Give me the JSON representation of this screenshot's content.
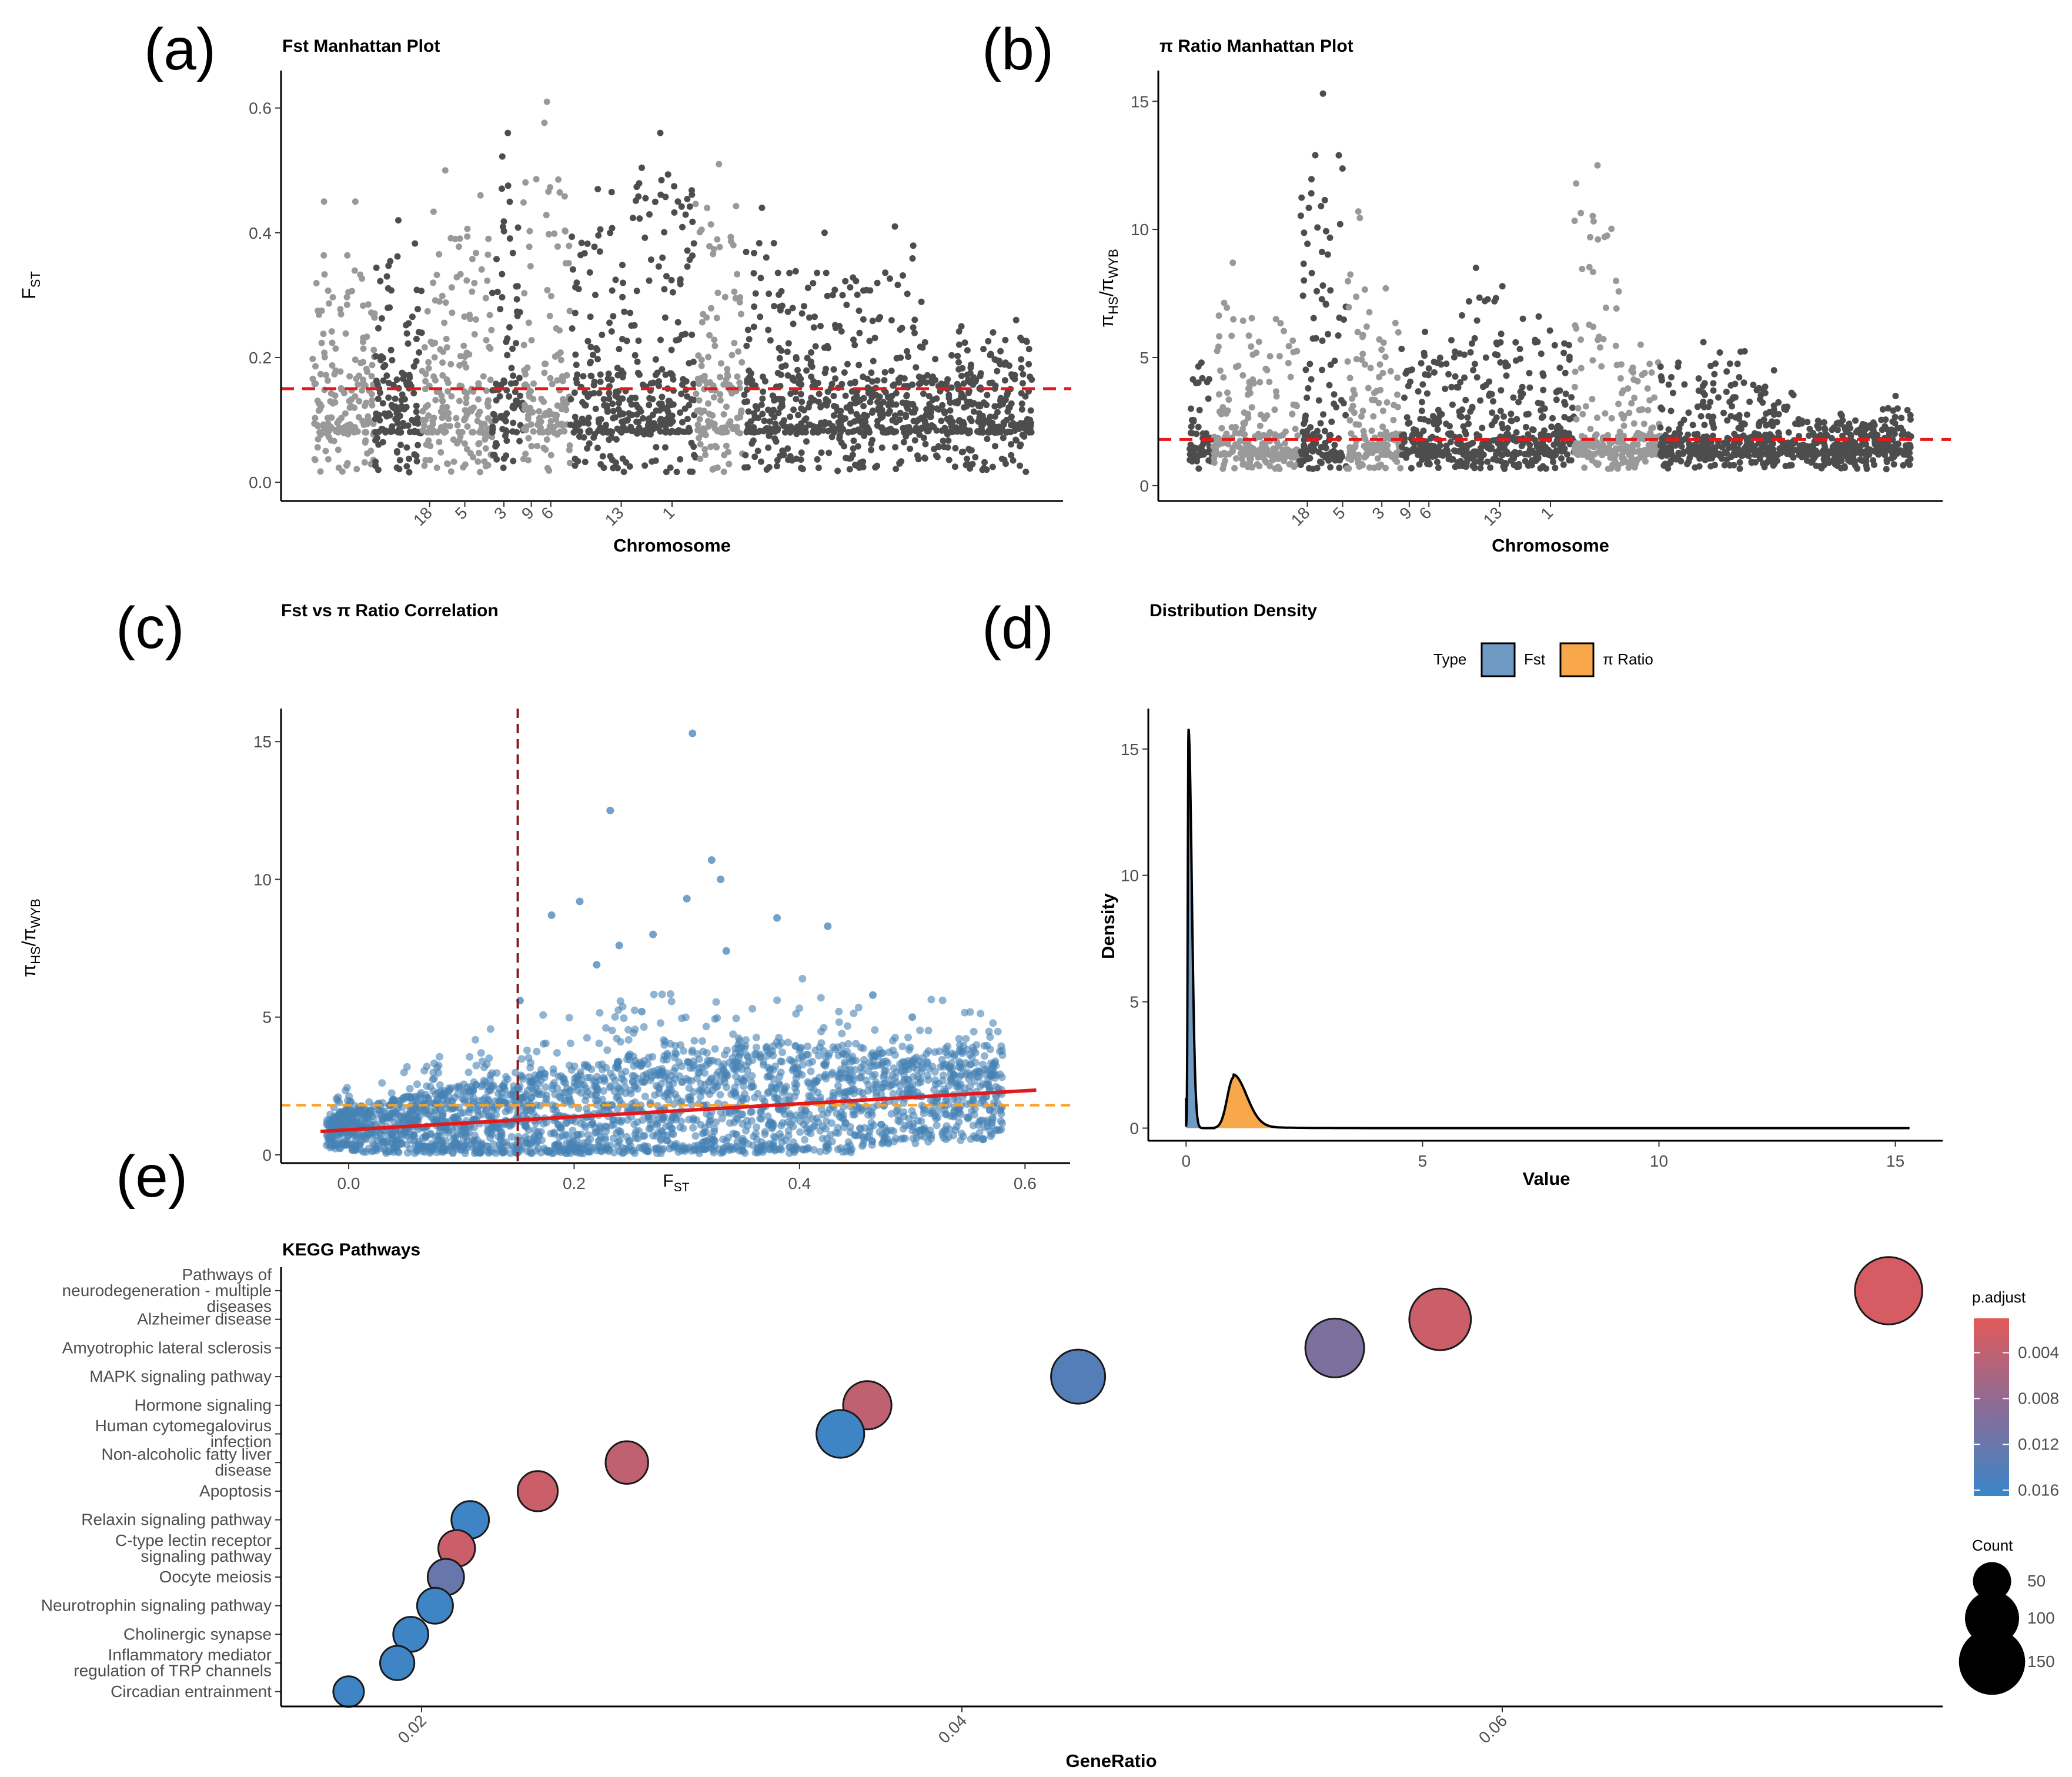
{
  "panel_labels": [
    "(a)",
    "(b)",
    "(c)",
    "(d)",
    "(e)"
  ],
  "colors": {
    "dark_points": "#4d4d4d",
    "light_points": "#999999",
    "threshold": "#e31a1c",
    "scatter": "#4682b4",
    "fit": "#e31a1c",
    "vline": "#8b1a1a",
    "hline": "#ff9f1a",
    "fst_fill": "#6f9ac4",
    "pi_fill": "#f8a84b",
    "padj_high": "#e05a5a",
    "padj_low": "#3a86c8"
  },
  "chart_data": [
    {
      "id": "a",
      "type": "scatter",
      "title": "Fst Manhattan Plot",
      "xlabel": "Chromosome",
      "ylabel_main": "F",
      "ylabel_sub": "ST",
      "yticks": [
        "0.0",
        "0.2",
        "0.4",
        "0.6"
      ],
      "ytick_values": [
        0.0,
        0.2,
        0.4,
        0.6
      ],
      "ylim": [
        -0.03,
        0.66
      ],
      "xticks": [
        "18",
        "5",
        "3",
        "9",
        "6",
        "13",
        "1"
      ],
      "xtick_positions": [
        0.19,
        0.235,
        0.285,
        0.32,
        0.345,
        0.435,
        0.5
      ],
      "threshold": 0.15,
      "segments": [
        {
          "start": 0.04,
          "end": 0.07,
          "shade": "light",
          "peak": 0.45
        },
        {
          "start": 0.07,
          "end": 0.12,
          "shade": "light",
          "peak": 0.45
        },
        {
          "start": 0.12,
          "end": 0.18,
          "shade": "dark",
          "peak": 0.42
        },
        {
          "start": 0.18,
          "end": 0.24,
          "shade": "light",
          "peak": 0.5
        },
        {
          "start": 0.24,
          "end": 0.27,
          "shade": "light",
          "peak": 0.46
        },
        {
          "start": 0.27,
          "end": 0.31,
          "shade": "dark",
          "peak": 0.56
        },
        {
          "start": 0.31,
          "end": 0.37,
          "shade": "light",
          "peak": 0.61
        },
        {
          "start": 0.37,
          "end": 0.44,
          "shade": "dark",
          "peak": 0.47
        },
        {
          "start": 0.44,
          "end": 0.53,
          "shade": "dark",
          "peak": 0.56
        },
        {
          "start": 0.53,
          "end": 0.59,
          "shade": "light",
          "peak": 0.51
        },
        {
          "start": 0.59,
          "end": 0.64,
          "shade": "dark",
          "peak": 0.44
        },
        {
          "start": 0.64,
          "end": 0.75,
          "shade": "dark",
          "peak": 0.4
        },
        {
          "start": 0.75,
          "end": 0.82,
          "shade": "dark",
          "peak": 0.41
        },
        {
          "start": 0.82,
          "end": 0.92,
          "shade": "dark",
          "peak": 0.25
        },
        {
          "start": 0.92,
          "end": 0.96,
          "shade": "dark",
          "peak": 0.26
        }
      ]
    },
    {
      "id": "b",
      "type": "scatter",
      "title": "π Ratio Manhattan Plot",
      "xlabel": "Chromosome",
      "ylabel_main": "π",
      "ylabel_sub1": "HS",
      "ylabel_mid": "/π",
      "ylabel_sub2": "WYB",
      "yticks": [
        "0",
        "5",
        "10",
        "15"
      ],
      "ytick_values": [
        0,
        5,
        10,
        15
      ],
      "ylim": [
        -0.6,
        16.2
      ],
      "xticks": [
        "18",
        "5",
        "3",
        "9",
        "6",
        "13",
        "1"
      ],
      "xtick_positions": [
        0.19,
        0.235,
        0.285,
        0.32,
        0.345,
        0.435,
        0.5
      ],
      "threshold": 1.8,
      "segments": [
        {
          "start": 0.04,
          "end": 0.07,
          "shade": "dark",
          "peak": 4.8
        },
        {
          "start": 0.07,
          "end": 0.12,
          "shade": "light",
          "peak": 8.7
        },
        {
          "start": 0.12,
          "end": 0.18,
          "shade": "light",
          "peak": 6.5
        },
        {
          "start": 0.18,
          "end": 0.24,
          "shade": "dark",
          "peak": 15.3
        },
        {
          "start": 0.24,
          "end": 0.27,
          "shade": "light",
          "peak": 10.7
        },
        {
          "start": 0.27,
          "end": 0.31,
          "shade": "light",
          "peak": 7.7
        },
        {
          "start": 0.31,
          "end": 0.37,
          "shade": "dark",
          "peak": 6.0
        },
        {
          "start": 0.37,
          "end": 0.44,
          "shade": "dark",
          "peak": 8.5
        },
        {
          "start": 0.44,
          "end": 0.53,
          "shade": "dark",
          "peak": 6.6
        },
        {
          "start": 0.53,
          "end": 0.59,
          "shade": "light",
          "peak": 12.5
        },
        {
          "start": 0.59,
          "end": 0.64,
          "shade": "light",
          "peak": 5.5
        },
        {
          "start": 0.64,
          "end": 0.75,
          "shade": "dark",
          "peak": 5.6
        },
        {
          "start": 0.75,
          "end": 0.82,
          "shade": "dark",
          "peak": 4.5
        },
        {
          "start": 0.82,
          "end": 0.92,
          "shade": "dark",
          "peak": 2.8
        },
        {
          "start": 0.92,
          "end": 0.96,
          "shade": "dark",
          "peak": 3.5
        }
      ]
    },
    {
      "id": "c",
      "type": "scatter",
      "title": "Fst vs π Ratio Correlation",
      "xlabel_main": "F",
      "xlabel_sub": "ST",
      "ylabel_main": "π",
      "ylabel_sub1": "HS",
      "ylabel_mid": "/π",
      "ylabel_sub2": "WYB",
      "xticks": [
        "0.0",
        "0.2",
        "0.4",
        "0.6"
      ],
      "xtick_values": [
        0.0,
        0.2,
        0.4,
        0.6
      ],
      "yticks": [
        "0",
        "5",
        "10",
        "15"
      ],
      "ytick_values": [
        0,
        5,
        10,
        15
      ],
      "xlim": [
        -0.06,
        0.64
      ],
      "ylim": [
        -0.3,
        16.2
      ],
      "vline": 0.15,
      "hline": 1.8,
      "fit": {
        "x": [
          -0.025,
          0.61
        ],
        "y": [
          0.85,
          2.35
        ]
      },
      "outliers": [
        {
          "x": 0.305,
          "y": 15.3
        },
        {
          "x": 0.232,
          "y": 12.5
        },
        {
          "x": 0.322,
          "y": 10.7
        },
        {
          "x": 0.33,
          "y": 10.0
        },
        {
          "x": 0.3,
          "y": 9.3
        },
        {
          "x": 0.205,
          "y": 9.2
        },
        {
          "x": 0.18,
          "y": 8.7
        },
        {
          "x": 0.38,
          "y": 8.6
        },
        {
          "x": 0.425,
          "y": 8.3
        },
        {
          "x": 0.27,
          "y": 8.0
        },
        {
          "x": 0.24,
          "y": 7.6
        },
        {
          "x": 0.335,
          "y": 7.4
        },
        {
          "x": 0.22,
          "y": 6.9
        },
        {
          "x": 0.465,
          "y": 5.8
        },
        {
          "x": 0.5,
          "y": 5.0
        },
        {
          "x": 0.152,
          "y": 5.6
        },
        {
          "x": 0.26,
          "y": 5.2
        }
      ]
    },
    {
      "id": "d",
      "type": "area",
      "title": "Distribution Density",
      "xlabel": "Value",
      "ylabel": "Density",
      "xticks": [
        "0",
        "5",
        "10",
        "15"
      ],
      "xtick_values": [
        0,
        5,
        10,
        15
      ],
      "yticks": [
        "0",
        "5",
        "10",
        "15"
      ],
      "ytick_values": [
        0,
        5,
        10,
        15
      ],
      "xlim": [
        -0.8,
        16.0
      ],
      "ylim": [
        -0.5,
        16.6
      ],
      "legend": {
        "title": "Type",
        "entries": [
          "Fst",
          "π Ratio"
        ]
      },
      "series": [
        {
          "name": "Fst",
          "peak_x": 0.05,
          "peak_y": 15.8,
          "range": [
            0.0,
            0.62
          ]
        },
        {
          "name": "π Ratio",
          "peak_x": 1.0,
          "peak_y": 2.0,
          "range": [
            0.5,
            15.3
          ]
        }
      ]
    },
    {
      "id": "e",
      "type": "scatter",
      "title": "KEGG Pathways",
      "xlabel": "GeneRatio",
      "xticks": [
        "0.02",
        "0.04",
        "0.06"
      ],
      "xtick_values": [
        0.02,
        0.04,
        0.06
      ],
      "xlim": [
        0.0148,
        0.0763
      ],
      "categories": [
        "Pathways of neurodegeneration - multiple diseases",
        "Alzheimer disease",
        "Amyotrophic lateral sclerosis",
        "MAPK signaling pathway",
        "Hormone signaling",
        "Human cytomegalovirus infection",
        "Non-alcoholic fatty liver disease",
        "Apoptosis",
        "Relaxin signaling pathway",
        "C-type lectin receptor signaling pathway",
        "Oocyte meiosis",
        "Neurotrophin signaling pathway",
        "Cholinergic synapse",
        "Inflammatory mediator regulation of TRP channels",
        "Circadian entrainment"
      ],
      "category_lines": [
        [
          "Pathways of",
          "neurodegeneration - multiple",
          "diseases"
        ],
        [
          "Alzheimer disease"
        ],
        [
          "Amyotrophic lateral sclerosis"
        ],
        [
          "MAPK signaling pathway"
        ],
        [
          "Hormone signaling"
        ],
        [
          "Human cytomegalovirus",
          "infection"
        ],
        [
          "Non-alcoholic fatty liver",
          "disease"
        ],
        [
          "Apoptosis"
        ],
        [
          "Relaxin signaling pathway"
        ],
        [
          "C-type lectin receptor",
          "signaling pathway"
        ],
        [
          "Oocyte meiosis"
        ],
        [
          "Neurotrophin signaling pathway"
        ],
        [
          "Cholinergic synapse"
        ],
        [
          "Inflammatory mediator",
          "regulation of TRP channels"
        ],
        [
          "Circadian entrainment"
        ]
      ],
      "points": [
        {
          "x": 0.0743,
          "count": 155,
          "padj": 0.002
        },
        {
          "x": 0.0577,
          "count": 130,
          "padj": 0.003
        },
        {
          "x": 0.0538,
          "count": 118,
          "padj": 0.01
        },
        {
          "x": 0.0443,
          "count": 100,
          "padj": 0.014
        },
        {
          "x": 0.0365,
          "count": 80,
          "padj": 0.004
        },
        {
          "x": 0.0355,
          "count": 78,
          "padj": 0.016
        },
        {
          "x": 0.0276,
          "count": 62,
          "padj": 0.004
        },
        {
          "x": 0.0243,
          "count": 55,
          "padj": 0.003
        },
        {
          "x": 0.0218,
          "count": 48,
          "padj": 0.016
        },
        {
          "x": 0.0213,
          "count": 46,
          "padj": 0.003
        },
        {
          "x": 0.0209,
          "count": 45,
          "padj": 0.012
        },
        {
          "x": 0.0205,
          "count": 44,
          "padj": 0.016
        },
        {
          "x": 0.0196,
          "count": 42,
          "padj": 0.016
        },
        {
          "x": 0.0191,
          "count": 40,
          "padj": 0.016
        },
        {
          "x": 0.0173,
          "count": 32,
          "padj": 0.016
        }
      ],
      "padj_legend": {
        "title": "p.adjust",
        "ticks": [
          "0.004",
          "0.008",
          "0.012",
          "0.016"
        ],
        "values": [
          0.004,
          0.008,
          0.012,
          0.016
        ],
        "range": [
          0.001,
          0.0165
        ]
      },
      "count_legend": {
        "title": "Count",
        "ticks": [
          "50",
          "100",
          "150"
        ],
        "values": [
          50,
          100,
          150
        ]
      }
    }
  ]
}
